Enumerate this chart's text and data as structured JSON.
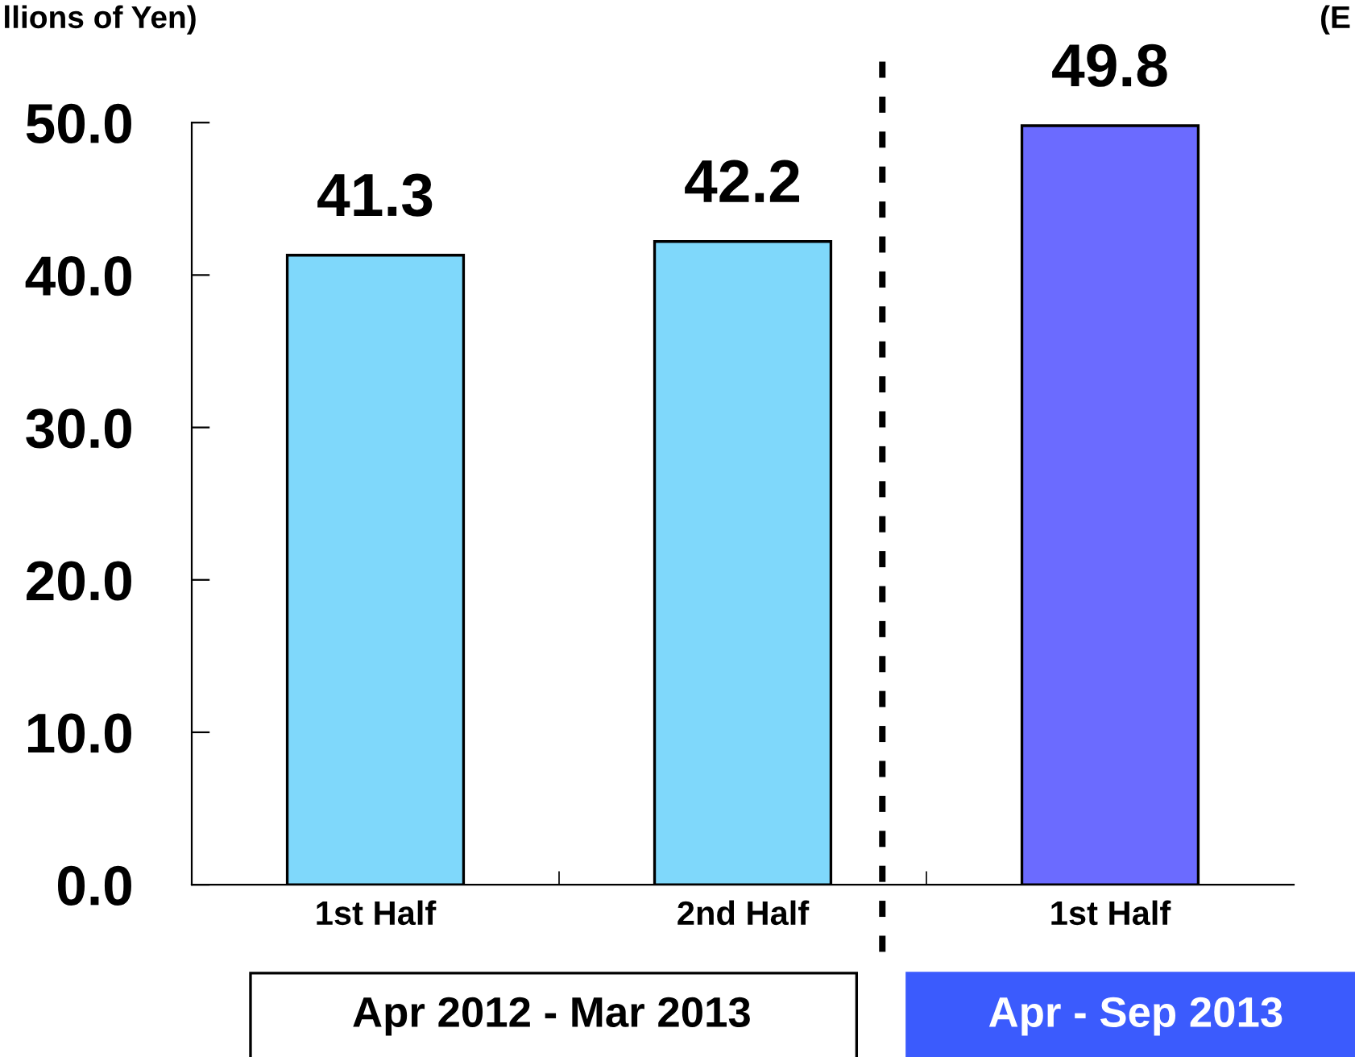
{
  "chart_data": {
    "type": "bar",
    "ylabel": "llions of Yen)",
    "categories": [
      "1st Half",
      "2nd Half",
      "1st Half"
    ],
    "values": [
      41.3,
      42.2,
      49.8
    ],
    "colors": [
      "#7fd8fb",
      "#7fd8fb",
      "#6b6bff"
    ],
    "ylim": [
      0,
      50
    ],
    "yticks": [
      {
        "value": 0,
        "label": "0.0"
      },
      {
        "value": 10,
        "label": "10.0"
      },
      {
        "value": 20,
        "label": "20.0"
      },
      {
        "value": 30,
        "label": "30.0"
      },
      {
        "value": 40,
        "label": "40.0"
      },
      {
        "value": 50,
        "label": "50.0"
      }
    ],
    "data_labels": true,
    "annotations": [
      "Apr 2012 - Mar 2013",
      "Apr - Sep 2013",
      "(E"
    ]
  }
}
